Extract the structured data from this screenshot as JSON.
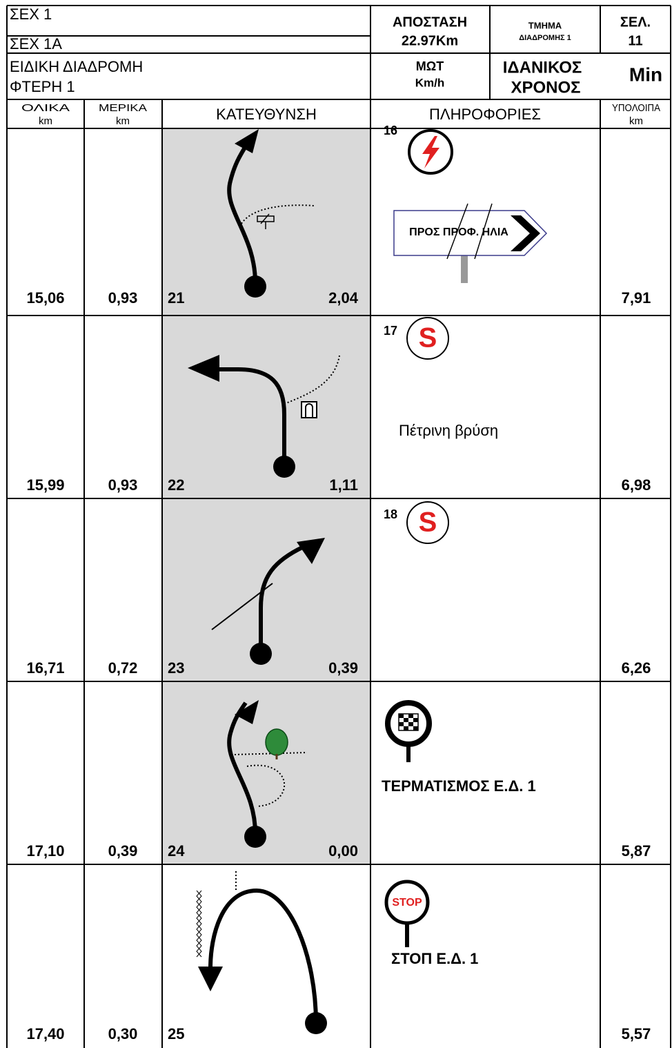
{
  "header": {
    "sec": [
      "ΣΕΧ 1",
      "ΣΕΧ 1Α"
    ],
    "stage": [
      "ΕΙΔΙΚΗ ΔΙΑΔΡΟΜΗ",
      "ΦΤΕΡΗ 1"
    ],
    "distance_label": "ΑΠΟΣΤΑΣΗ",
    "distance": "22.97Km",
    "section_label": "ΤΜΗΜΑ",
    "section": "ΔΙΑΔΡΟΜΗΣ 1",
    "page_label": "ΣΕΛ.",
    "page": "11",
    "avg_label": "ΜΩΤ",
    "avg_unit": "Km/h",
    "ideal_label": [
      "ΙΔΑΝΙΚΟΣ",
      "ΧΡΟΝΟΣ"
    ],
    "ideal_unit": "Min"
  },
  "columns": [
    {
      "label": "ΟΛΙΚΑ",
      "unit": "km"
    },
    {
      "label": "ΜΕΡΙΚΑ",
      "unit": "km"
    },
    {
      "label": "ΚΑΤΕΥΘΥΝΣΗ"
    },
    {
      "label": "ΠΛΗΡΟΦΟΡΙΕΣ"
    },
    {
      "label": "ΥΠΟΛΟΙΠΑ",
      "unit": "km"
    }
  ],
  "rows": [
    {
      "total": "15,06",
      "partial": "0,93",
      "number": "21",
      "next": "2,04",
      "remaining": "7,91",
      "info": {
        "marker": "16",
        "sign": "ΠΡΟΣ ΠΡΟΦ. ΗΛΙΑ"
      }
    },
    {
      "total": "15,99",
      "partial": "0,93",
      "number": "22",
      "next": "1,11",
      "remaining": "6,98",
      "info": {
        "marker": "17",
        "icon": "S",
        "note": "Πέτρινη βρύση"
      }
    },
    {
      "total": "16,71",
      "partial": "0,72",
      "number": "23",
      "next": "0,39",
      "remaining": "6,26",
      "info": {
        "marker": "18",
        "icon": "S"
      }
    },
    {
      "total": "17,10",
      "partial": "0,39",
      "number": "24",
      "next": "0,00",
      "remaining": "5,87",
      "info": {
        "note": "ΤΕΡΜΑΤΙΣΜΟΣ Ε.Δ. 1"
      }
    },
    {
      "total": "17,40",
      "partial": "0,30",
      "number": "25",
      "remaining": "5,57",
      "info": {
        "icon": "STOP",
        "note": "ΣΤΟΠ Ε.Δ. 1"
      }
    }
  ]
}
